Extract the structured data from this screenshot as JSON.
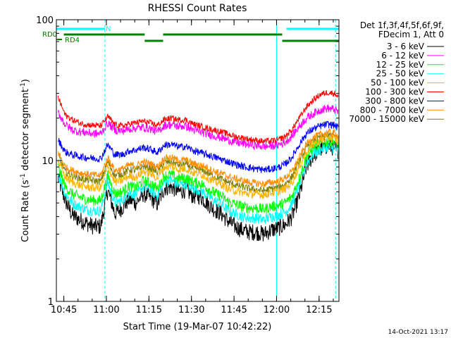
{
  "chart_data": {
    "type": "line",
    "title": "RHESSI Count Rates",
    "xlabel": "Start Time (19-Mar-07 10:42:22)",
    "ylabel": "Count Rate (s",
    "ylabel_sup1": "-1",
    "ylabel_mid": " detector segment",
    "ylabel_sup2": "-1",
    "ylabel_end": ")",
    "yscale": "log",
    "ylim": [
      1,
      100
    ],
    "y_ticks": [
      {
        "value": 1,
        "label": "1"
      },
      {
        "value": 10,
        "label": "10"
      },
      {
        "value": 100,
        "label": "100"
      }
    ],
    "x_ticks": [
      "10:45",
      "11:00",
      "11:15",
      "11:30",
      "11:45",
      "12:00",
      "12:15"
    ],
    "x_tick_minutes": [
      45,
      60,
      75,
      90,
      105,
      120,
      135
    ],
    "xlim_minutes": [
      42.37,
      142.0
    ],
    "legend": {
      "header": [
        "Det 1f,3f,4f,5f,6f,9f,",
        "FDecim 1, Att 0"
      ],
      "placement": "outside-right"
    },
    "series": [
      {
        "name": "3 - 6 keV",
        "color": "#000000",
        "values": [
          7.5,
          5.2,
          4.1,
          3.8,
          3.6,
          3.4,
          3.4,
          6.2,
          4.2,
          4.6,
          5.3,
          5.0,
          5.8,
          5.5,
          4.9,
          6.4,
          6.5,
          6.0,
          6.2,
          5.6,
          5.6,
          5.0,
          4.5,
          4.2,
          3.7,
          3.4,
          3.2,
          3.1,
          3.1,
          3.0,
          3.2,
          3.3,
          3.5,
          4.0,
          5.6,
          9.0,
          11.0,
          12.0,
          12.8,
          12.2,
          11.8
        ]
      },
      {
        "name": "6 - 12 keV",
        "color": "#ff00ff",
        "values": [
          22.0,
          18.0,
          16.5,
          16.0,
          15.8,
          15.5,
          15.5,
          18.5,
          16.5,
          16.2,
          16.8,
          17.0,
          17.2,
          16.8,
          16.0,
          17.8,
          18.0,
          17.5,
          17.6,
          16.5,
          16.0,
          15.5,
          15.0,
          14.5,
          14.0,
          13.5,
          13.2,
          13.0,
          12.8,
          12.6,
          12.7,
          12.9,
          13.5,
          15.0,
          17.5,
          20.0,
          21.5,
          23.0,
          23.5,
          23.0,
          22.0
        ]
      },
      {
        "name": "12 - 25 keV",
        "color": "#00ff00",
        "values": [
          9.0,
          6.5,
          5.8,
          5.5,
          5.3,
          5.2,
          5.2,
          7.8,
          5.8,
          6.0,
          6.6,
          6.4,
          7.2,
          6.9,
          6.3,
          7.8,
          7.9,
          7.4,
          7.6,
          7.0,
          6.9,
          6.4,
          5.9,
          5.6,
          5.1,
          4.9,
          4.7,
          4.6,
          4.6,
          4.5,
          4.7,
          4.8,
          5.0,
          5.6,
          7.5,
          10.5,
          12.5,
          13.2,
          13.8,
          13.5,
          13.0
        ]
      },
      {
        "name": "25 - 50 keV",
        "color": "#00ffff",
        "values": [
          8.0,
          5.8,
          5.0,
          4.7,
          4.5,
          4.4,
          4.4,
          7.0,
          5.0,
          5.2,
          5.9,
          5.7,
          6.5,
          6.2,
          5.6,
          7.1,
          7.2,
          6.7,
          6.9,
          6.3,
          6.2,
          5.7,
          5.2,
          4.9,
          4.4,
          4.2,
          4.0,
          3.9,
          3.9,
          3.8,
          4.0,
          4.1,
          4.3,
          4.9,
          6.7,
          9.5,
          11.2,
          12.0,
          12.5,
          12.2,
          11.5
        ]
      },
      {
        "name": "50 - 100 keV",
        "color": "#ffb400",
        "values": [
          10.0,
          7.6,
          7.0,
          6.7,
          6.5,
          6.4,
          6.4,
          9.0,
          7.0,
          7.2,
          7.8,
          7.6,
          8.4,
          8.1,
          7.5,
          9.0,
          9.1,
          8.6,
          8.8,
          8.2,
          8.1,
          7.6,
          7.1,
          6.8,
          6.3,
          6.1,
          5.9,
          5.8,
          5.8,
          5.7,
          5.9,
          6.0,
          6.3,
          7.0,
          9.0,
          11.5,
          13.2,
          14.0,
          14.6,
          14.3,
          13.6
        ]
      },
      {
        "name": "100 - 300 keV",
        "color": "#ff0000",
        "values": [
          28.0,
          21.0,
          19.5,
          18.5,
          18.0,
          17.8,
          17.6,
          20.5,
          18.0,
          17.6,
          18.2,
          18.6,
          19.0,
          18.5,
          17.8,
          19.6,
          20.0,
          19.4,
          19.5,
          18.2,
          17.6,
          17.0,
          16.5,
          16.0,
          15.4,
          14.8,
          14.5,
          14.2,
          13.9,
          13.7,
          13.8,
          14.0,
          14.8,
          16.6,
          20.0,
          24.0,
          27.0,
          29.5,
          30.5,
          30.0,
          28.5
        ]
      },
      {
        "name": "300 - 800 keV",
        "color": "#0000ff",
        "values": [
          14.0,
          11.5,
          11.0,
          10.7,
          10.5,
          10.4,
          10.3,
          13.0,
          11.0,
          11.0,
          11.7,
          11.9,
          12.4,
          12.0,
          11.4,
          12.9,
          13.0,
          12.5,
          12.6,
          11.8,
          11.4,
          11.0,
          10.6,
          10.2,
          9.8,
          9.4,
          9.1,
          8.9,
          8.7,
          8.6,
          8.7,
          8.9,
          9.4,
          10.6,
          13.0,
          15.5,
          16.8,
          17.6,
          18.1,
          17.8,
          17.0
        ]
      },
      {
        "name": "800 - 7000 keV",
        "color": "#ff8c00",
        "values": [
          11.5,
          9.0,
          8.5,
          8.2,
          8.0,
          7.9,
          7.8,
          10.5,
          8.5,
          8.7,
          9.3,
          9.2,
          9.8,
          9.5,
          9.0,
          10.4,
          10.5,
          10.0,
          10.1,
          9.5,
          9.3,
          8.9,
          8.4,
          8.1,
          7.7,
          7.4,
          7.2,
          7.0,
          6.9,
          6.8,
          7.0,
          7.1,
          7.5,
          8.4,
          10.5,
          13.0,
          14.6,
          15.3,
          15.9,
          15.6,
          14.8
        ]
      },
      {
        "name": "7000 - 15000 keV",
        "color": "#808000",
        "values": [
          10.8,
          8.3,
          7.8,
          7.5,
          7.3,
          7.2,
          7.1,
          9.8,
          7.8,
          8.0,
          8.6,
          8.5,
          9.1,
          8.8,
          8.3,
          9.7,
          9.8,
          9.3,
          9.4,
          8.8,
          8.6,
          8.2,
          7.7,
          7.4,
          7.0,
          6.7,
          6.5,
          6.3,
          6.2,
          6.1,
          6.3,
          6.4,
          6.8,
          7.7,
          9.8,
          12.3,
          13.9,
          14.6,
          15.2,
          14.9,
          14.1
        ]
      }
    ],
    "time_minutes": [
      43.0,
      45.5,
      48.0,
      50.5,
      53.0,
      55.5,
      58.0,
      60.5,
      63.0,
      65.5,
      68.0,
      70.5,
      73.0,
      75.5,
      78.0,
      80.5,
      83.0,
      85.5,
      88.0,
      90.5,
      93.0,
      95.5,
      98.0,
      100.5,
      103.0,
      105.5,
      108.0,
      110.5,
      113.0,
      115.5,
      118.0,
      120.5,
      123.0,
      125.5,
      128.0,
      130.5,
      133.0,
      135.5,
      138.0,
      140.5,
      141.8
    ],
    "flags": [
      {
        "label": "N",
        "color": "#00ffff",
        "segments": [
          [
            42.37,
            59.5
          ],
          [
            123.5,
            142.0
          ]
        ]
      },
      {
        "label": "RD0",
        "color": "#008000",
        "segments": [
          [
            45.0,
            73.5
          ],
          [
            80.0,
            122.0
          ]
        ]
      },
      {
        "label": "RD4",
        "color": "#008000",
        "segments": [
          [
            73.5,
            80.0
          ],
          [
            122.0,
            142.0
          ]
        ]
      }
    ],
    "night_markers_solid": [
      42.37,
      120.0
    ],
    "night_markers_dashed": [
      59.5,
      140.8
    ],
    "grid": false
  },
  "footer": {
    "timestamp": "14-Oct-2021 13:17"
  }
}
